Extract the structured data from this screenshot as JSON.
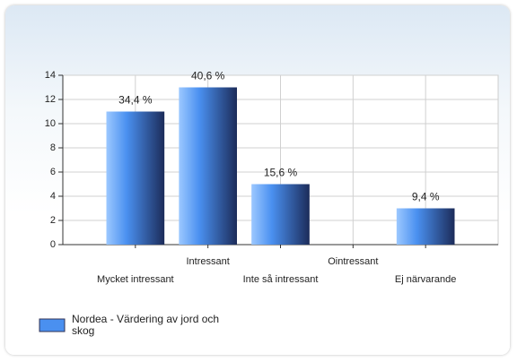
{
  "chart_data": {
    "type": "bar",
    "categories": [
      "Mycket intressant",
      "Intressant",
      "Inte så intressant",
      "Ointressant",
      "Ej närvarande"
    ],
    "series": [
      {
        "name": "Nordea - Värdering av jord och skog",
        "color": "#4a90f0",
        "values": [
          11,
          13,
          5,
          0,
          3
        ],
        "value_labels": [
          "34,4 %",
          "40,6 %",
          "15,6 %",
          null,
          "9,4 %"
        ]
      }
    ],
    "ylim": [
      0,
      14
    ],
    "yticks": [
      0,
      2,
      4,
      6,
      8,
      10,
      12,
      14
    ],
    "grid": true,
    "legend": "bottom-left"
  }
}
